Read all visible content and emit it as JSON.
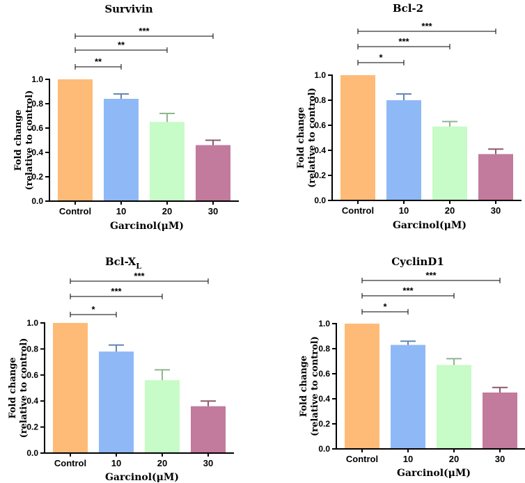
{
  "colors": {
    "Control": "#FEBB77",
    "10": "#8EB9F6",
    "20": "#C7FBC7",
    "30": "#C27A9D"
  },
  "chart_data": [
    {
      "type": "bar",
      "title": "Survivin",
      "title_sub": "",
      "categories": [
        "Control",
        "10",
        "20",
        "30"
      ],
      "values": [
        1.0,
        0.84,
        0.65,
        0.46
      ],
      "errors": [
        0.0,
        0.04,
        0.07,
        0.04
      ],
      "xlabel": "Garcinol(μM)",
      "ylabel_line1": "Fold change",
      "ylabel_line2": "(relative to control)",
      "ylim": [
        0,
        1.0
      ],
      "yticks": [
        "0.0",
        "0.2",
        "0.4",
        "0.6",
        "0.8",
        "1.0"
      ],
      "significance": [
        {
          "from": "Control",
          "to": "10",
          "label": "**"
        },
        {
          "from": "Control",
          "to": "20",
          "label": "**"
        },
        {
          "from": "Control",
          "to": "30",
          "label": "***"
        }
      ]
    },
    {
      "type": "bar",
      "title": "Bcl-2",
      "title_sub": "",
      "categories": [
        "Control",
        "10",
        "20",
        "30"
      ],
      "values": [
        1.0,
        0.8,
        0.59,
        0.37
      ],
      "errors": [
        0.0,
        0.05,
        0.04,
        0.04
      ],
      "xlabel": "Garcinol(μM)",
      "ylabel_line1": "Fold change",
      "ylabel_line2": "(relative to control)",
      "ylim": [
        0,
        1.0
      ],
      "yticks": [
        "0.0",
        "0.2",
        "0.4",
        "0.6",
        "0.8",
        "1.0"
      ],
      "significance": [
        {
          "from": "Control",
          "to": "10",
          "label": "*"
        },
        {
          "from": "Control",
          "to": "20",
          "label": "***"
        },
        {
          "from": "Control",
          "to": "30",
          "label": "***"
        }
      ]
    },
    {
      "type": "bar",
      "title": "Bcl-X",
      "title_sub": "L",
      "categories": [
        "Control",
        "10",
        "20",
        "30"
      ],
      "values": [
        1.0,
        0.78,
        0.56,
        0.36
      ],
      "errors": [
        0.0,
        0.05,
        0.08,
        0.04
      ],
      "xlabel": "Garcinol(μM)",
      "ylabel_line1": "Fold change",
      "ylabel_line2": "(relative to control)",
      "ylim": [
        0,
        1.0
      ],
      "yticks": [
        "0.0",
        "0.2",
        "0.4",
        "0.6",
        "0.8",
        "1.0"
      ],
      "significance": [
        {
          "from": "Control",
          "to": "10",
          "label": "*"
        },
        {
          "from": "Control",
          "to": "20",
          "label": "***"
        },
        {
          "from": "Control",
          "to": "30",
          "label": "***"
        }
      ]
    },
    {
      "type": "bar",
      "title": "CyclinD1",
      "title_sub": "",
      "categories": [
        "Control",
        "10",
        "20",
        "30"
      ],
      "values": [
        1.0,
        0.83,
        0.67,
        0.45
      ],
      "errors": [
        0.0,
        0.03,
        0.05,
        0.04
      ],
      "xlabel": "Garcinol(μM)",
      "ylabel_line1": "Fold change",
      "ylabel_line2": "(relative to control)",
      "ylim": [
        0,
        1.0
      ],
      "yticks": [
        "0.0",
        "0.2",
        "0.4",
        "0.6",
        "0.8",
        "1.0"
      ],
      "significance": [
        {
          "from": "Control",
          "to": "10",
          "label": "*"
        },
        {
          "from": "Control",
          "to": "20",
          "label": "***"
        },
        {
          "from": "Control",
          "to": "30",
          "label": "***"
        }
      ]
    }
  ]
}
